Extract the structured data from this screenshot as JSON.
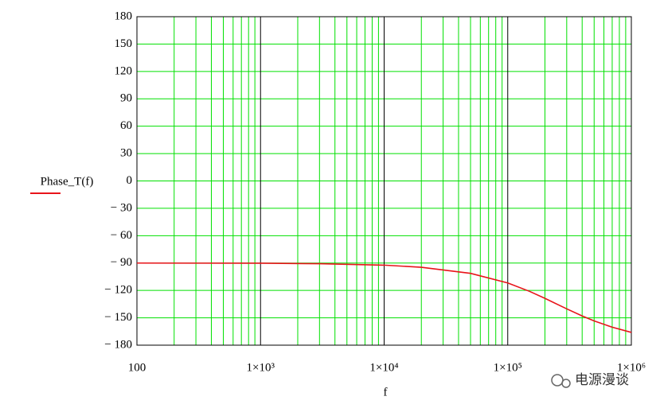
{
  "chart_data": {
    "type": "line",
    "y_label": "Phase_T(f)",
    "x_label": "f",
    "xscale": "log",
    "grid": true,
    "x": [
      100,
      300,
      1000,
      3000,
      10000,
      20000,
      50000,
      100000,
      150000,
      200000,
      300000,
      400000,
      500000,
      700000,
      1000000
    ],
    "series": [
      {
        "name": "Phase_T(f)",
        "color": "#e8141a",
        "values": [
          -90.0,
          -90.1,
          -90.2,
          -90.7,
          -92.3,
          -94.6,
          -101.3,
          -111.8,
          -121.0,
          -128.7,
          -140.2,
          -148.0,
          -153.4,
          -160.3,
          -166.0
        ]
      }
    ],
    "xlim": [
      100,
      1000000
    ],
    "xticks": [
      100,
      {
        "value": 1000,
        "label": "1×10³"
      },
      {
        "value": 10000,
        "label": "1×10⁴"
      },
      {
        "value": 100000,
        "label": "1×10⁵"
      },
      {
        "value": 1000000,
        "label": "1×10⁶"
      }
    ],
    "ylim": [
      -180,
      180
    ],
    "yticks": [
      180,
      150,
      120,
      90,
      60,
      30,
      0,
      {
        "value": -30,
        "label": "− 30"
      },
      {
        "value": -60,
        "label": "− 60"
      },
      {
        "value": -90,
        "label": "− 90"
      },
      {
        "value": -120,
        "label": "− 120"
      },
      {
        "value": -150,
        "label": "− 150"
      },
      {
        "value": -180,
        "label": "− 180"
      }
    ]
  },
  "watermark": "电源漫谈"
}
